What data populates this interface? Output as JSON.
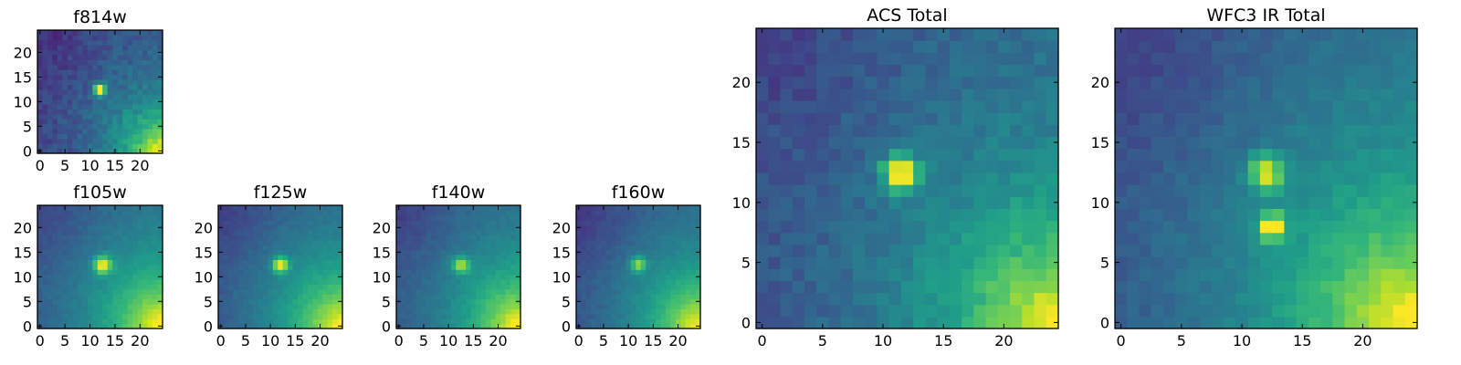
{
  "figure": {
    "colormap": "viridis",
    "colormap_stops": [
      "#440154",
      "#482878",
      "#3e4989",
      "#31688e",
      "#26828e",
      "#1f9e89",
      "#35b779",
      "#6ece58",
      "#b5de2b",
      "#fde725"
    ]
  },
  "chart_data": [
    {
      "type": "heatmap",
      "title": "f814w",
      "grid_size": 25,
      "xticks": [
        0,
        5,
        10,
        15,
        20
      ],
      "yticks": [
        0,
        5,
        10,
        15,
        20
      ],
      "xlim": [
        -0.5,
        24.5
      ],
      "ylim": [
        -0.5,
        24.5
      ],
      "source": {
        "x": 12,
        "y": 12.5,
        "peak": 0.95,
        "sigma": 0.8
      },
      "secondary_source": null,
      "background": {
        "base": 0.15,
        "corner_strength": 0.85,
        "corner_x": 24,
        "corner_y": 0,
        "corner_scale": 9,
        "noise": 0.12
      }
    },
    {
      "type": "heatmap",
      "title": "f105w",
      "grid_size": 25,
      "xticks": [
        0,
        5,
        10,
        15,
        20
      ],
      "yticks": [
        0,
        5,
        10,
        15,
        20
      ],
      "xlim": [
        -0.5,
        24.5
      ],
      "ylim": [
        -0.5,
        24.5
      ],
      "source": {
        "x": 12.5,
        "y": 12.5,
        "peak": 0.6,
        "sigma": 1.2
      },
      "secondary_source": null,
      "background": {
        "base": 0.18,
        "corner_strength": 0.85,
        "corner_x": 24,
        "corner_y": 0,
        "corner_scale": 13,
        "noise": 0.05
      }
    },
    {
      "type": "heatmap",
      "title": "f125w",
      "grid_size": 25,
      "xticks": [
        0,
        5,
        10,
        15,
        20
      ],
      "yticks": [
        0,
        5,
        10,
        15,
        20
      ],
      "xlim": [
        -0.5,
        24.5
      ],
      "ylim": [
        -0.5,
        24.5
      ],
      "source": {
        "x": 12,
        "y": 12.5,
        "peak": 0.6,
        "sigma": 1.1
      },
      "secondary_source": null,
      "background": {
        "base": 0.16,
        "corner_strength": 0.85,
        "corner_x": 24,
        "corner_y": 0,
        "corner_scale": 13,
        "noise": 0.05
      }
    },
    {
      "type": "heatmap",
      "title": "f140w",
      "grid_size": 25,
      "xticks": [
        0,
        5,
        10,
        15,
        20
      ],
      "yticks": [
        0,
        5,
        10,
        15,
        20
      ],
      "xlim": [
        -0.5,
        24.5
      ],
      "ylim": [
        -0.5,
        24.5
      ],
      "source": {
        "x": 12.5,
        "y": 12.5,
        "peak": 0.45,
        "sigma": 1.2
      },
      "secondary_source": null,
      "background": {
        "base": 0.16,
        "corner_strength": 0.85,
        "corner_x": 24,
        "corner_y": 0,
        "corner_scale": 13,
        "noise": 0.05
      }
    },
    {
      "type": "heatmap",
      "title": "f160w",
      "grid_size": 25,
      "xticks": [
        0,
        5,
        10,
        15,
        20
      ],
      "yticks": [
        0,
        5,
        10,
        15,
        20
      ],
      "xlim": [
        -0.5,
        24.5
      ],
      "ylim": [
        -0.5,
        24.5
      ],
      "source": {
        "x": 12,
        "y": 12.5,
        "peak": 0.45,
        "sigma": 1.1
      },
      "secondary_source": null,
      "background": {
        "base": 0.14,
        "corner_strength": 0.85,
        "corner_x": 24,
        "corner_y": 0,
        "corner_scale": 13,
        "noise": 0.05
      }
    },
    {
      "type": "heatmap",
      "title": "ACS Total",
      "grid_size": 25,
      "xticks": [
        0,
        5,
        10,
        15,
        20
      ],
      "yticks": [
        0,
        5,
        10,
        15,
        20
      ],
      "xlim": [
        -0.5,
        24.5
      ],
      "ylim": [
        -0.5,
        24.5
      ],
      "source": {
        "x": 11.5,
        "y": 12.5,
        "peak": 0.8,
        "sigma": 1.0
      },
      "secondary_source": null,
      "background": {
        "base": 0.2,
        "corner_strength": 0.8,
        "corner_x": 24,
        "corner_y": 0,
        "corner_scale": 10,
        "noise": 0.1
      }
    },
    {
      "type": "heatmap",
      "title": "WFC3 IR Total",
      "grid_size": 25,
      "xticks": [
        0,
        5,
        10,
        15,
        20
      ],
      "yticks": [
        0,
        5,
        10,
        15,
        20
      ],
      "xlim": [
        -0.5,
        24.5
      ],
      "ylim": [
        -0.5,
        24.5
      ],
      "source": {
        "x": 12,
        "y": 12.5,
        "peak": 0.55,
        "sigma": 1.0
      },
      "secondary_source": {
        "x": 12.5,
        "y": 8,
        "peak": 0.75,
        "sigma": 0.7
      },
      "background": {
        "base": 0.18,
        "corner_strength": 0.85,
        "corner_x": 24,
        "corner_y": 0,
        "corner_scale": 12,
        "noise": 0.07
      }
    }
  ]
}
